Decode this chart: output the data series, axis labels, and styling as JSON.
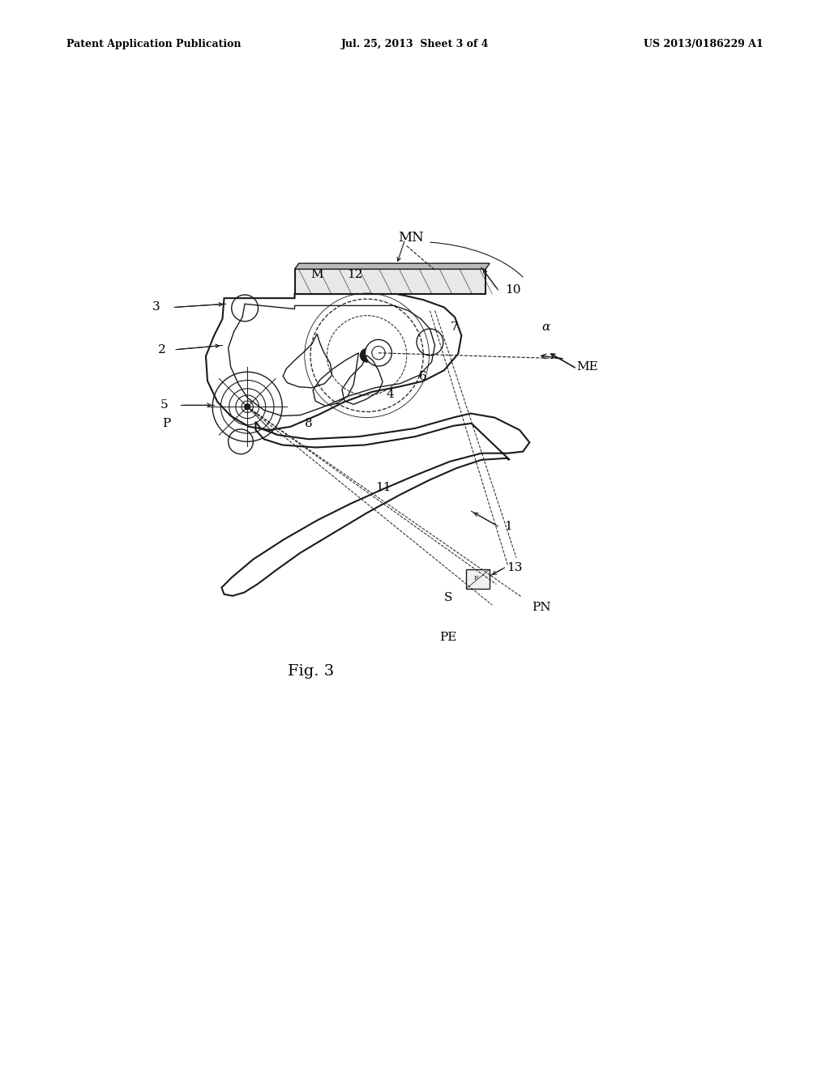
{
  "header_left": "Patent Application Publication",
  "header_center": "Jul. 25, 2013  Sheet 3 of 4",
  "header_right": "US 2013/0186229 A1",
  "figure_label": "Fig. 3",
  "background_color": "#ffffff",
  "line_color": "#1a1a1a",
  "label_fontsize": 11,
  "header_fontsize": 9,
  "fig3_fontsize": 14
}
